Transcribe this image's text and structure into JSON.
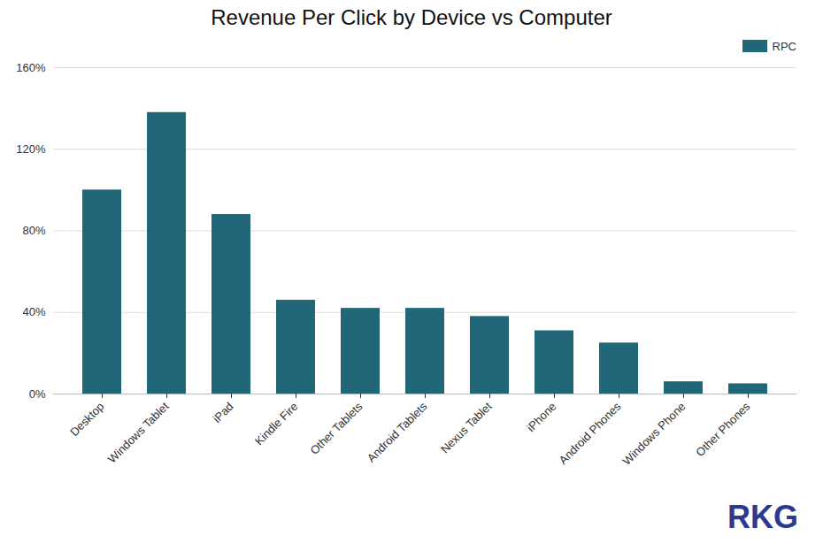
{
  "chart_data": {
    "type": "bar",
    "title": "Revenue Per Click by Device vs Computer",
    "categories": [
      "Desktop",
      "Windows Tablet",
      "iPad",
      "Kindle Fire",
      "Other Tablets",
      "Android Tablets",
      "Nexus Tablet",
      "iPhone",
      "Android Phones",
      "Windows Phone",
      "Other Phones"
    ],
    "series": [
      {
        "name": "RPC",
        "color": "#216778",
        "values": [
          1.0,
          1.38,
          0.88,
          0.46,
          0.42,
          0.42,
          0.38,
          0.31,
          0.25,
          0.06,
          0.05
        ]
      }
    ],
    "ylim": [
      0,
      1.6
    ],
    "yticks": [
      {
        "value": 0.0,
        "label": "0%"
      },
      {
        "value": 0.4,
        "label": "40%"
      },
      {
        "value": 0.8,
        "label": "80%"
      },
      {
        "value": 1.2,
        "label": "120%"
      },
      {
        "value": 1.6,
        "label": "160%"
      }
    ],
    "grid": true,
    "legend": "upper right",
    "annotations": [
      {
        "text": "RKG",
        "color": "#2b3990"
      }
    ]
  }
}
